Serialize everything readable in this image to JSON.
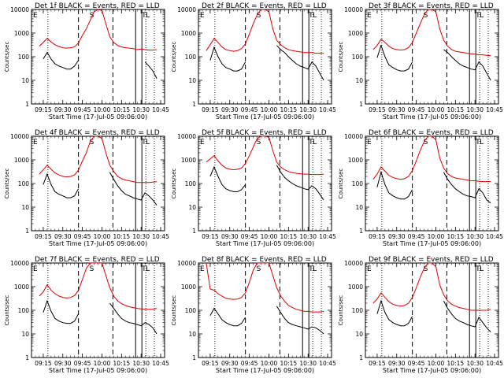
{
  "chart_data": {
    "type": "line",
    "layout": "3x3 grid",
    "xlabel": "Start Time (17-Jul-05 09:06:00)",
    "ylabel": "Counts/sec",
    "xlim": [
      9.1,
      10.8
    ],
    "ylim": [
      1,
      10000
    ],
    "yscale": "log",
    "x_ticks": [
      9.25,
      9.5,
      9.75,
      10.0,
      10.25,
      10.5,
      10.75
    ],
    "x_tick_labels": [
      "09:15",
      "09:30",
      "09:45",
      "10:00",
      "10:15",
      "10:30",
      "10:45"
    ],
    "y_ticks": [
      1,
      10,
      100,
      1000,
      10000
    ],
    "y_tick_labels": [
      "1",
      "10",
      "100",
      "1000",
      "10000"
    ],
    "legend": "BLACK = Events, RED = LLD",
    "series_colors": {
      "events": "#000000",
      "lld": "#e00000"
    },
    "attenuator_marks": [
      {
        "label": "E",
        "x": 9.12
      },
      {
        "label": "S",
        "x": 9.84
      },
      {
        "label": "T",
        "x": 10.51
      },
      {
        "label": "L",
        "x": 10.56
      }
    ],
    "dotted_lines_x": [
      9.31,
      10.56,
      10.67
    ],
    "dashed_lines_x": [
      9.7,
      10.14
    ],
    "solid_lines_x": [
      10.43,
      10.51
    ],
    "x": [
      9.2,
      9.25,
      9.3,
      9.35,
      9.4,
      9.45,
      9.5,
      9.55,
      9.6,
      9.65,
      9.7,
      9.75,
      9.8,
      9.85,
      9.9,
      9.95,
      10.0,
      10.05,
      10.1,
      10.15,
      10.2,
      10.25,
      10.3,
      10.35,
      10.4,
      10.45,
      10.5,
      10.55,
      10.6,
      10.65,
      10.7
    ],
    "panels": [
      {
        "title": "Det 1f BLACK = Events, RED = LLD",
        "lld": [
          280,
          400,
          600,
          420,
          320,
          270,
          240,
          230,
          240,
          260,
          380,
          800,
          1500,
          3500,
          8000,
          10000,
          9000,
          2500,
          700,
          400,
          300,
          260,
          240,
          230,
          220,
          200,
          210,
          200,
          190,
          190,
          200
        ],
        "events": [
          null,
          80,
          150,
          80,
          50,
          40,
          35,
          30,
          30,
          40,
          70,
          null,
          null,
          null,
          null,
          null,
          null,
          null,
          null,
          null,
          null,
          null,
          null,
          null,
          null,
          null,
          null,
          60,
          40,
          25,
          12
        ]
      },
      {
        "title": "Det 2f BLACK = Events, RED = LLD",
        "lld": [
          180,
          320,
          600,
          400,
          260,
          200,
          180,
          170,
          180,
          220,
          350,
          900,
          2500,
          6000,
          10000,
          10000,
          8000,
          1500,
          500,
          320,
          240,
          200,
          180,
          170,
          160,
          150,
          150,
          150,
          140,
          140,
          140
        ],
        "events": [
          null,
          70,
          250,
          100,
          50,
          35,
          30,
          25,
          25,
          30,
          60,
          null,
          null,
          null,
          null,
          null,
          null,
          null,
          300,
          200,
          150,
          100,
          70,
          50,
          40,
          35,
          30,
          60,
          40,
          20,
          10
        ]
      },
      {
        "title": "Det 3f BLACK = Events, RED = LLD",
        "lld": [
          200,
          300,
          550,
          400,
          280,
          220,
          200,
          190,
          200,
          240,
          400,
          1000,
          2500,
          6000,
          10000,
          10000,
          8000,
          1500,
          500,
          280,
          200,
          170,
          160,
          150,
          140,
          130,
          130,
          120,
          120,
          115,
          110
        ],
        "events": [
          null,
          90,
          300,
          100,
          45,
          35,
          28,
          25,
          25,
          30,
          60,
          null,
          null,
          null,
          null,
          null,
          null,
          null,
          200,
          150,
          100,
          70,
          50,
          40,
          35,
          30,
          28,
          60,
          40,
          20,
          10
        ]
      },
      {
        "title": "Det 4f BLACK = Events, RED = LLD",
        "lld": [
          250,
          380,
          600,
          400,
          280,
          230,
          200,
          190,
          200,
          230,
          370,
          900,
          2000,
          6000,
          10000,
          10000,
          8000,
          2000,
          600,
          320,
          200,
          160,
          140,
          130,
          120,
          110,
          110,
          110,
          110,
          115,
          120
        ],
        "events": [
          null,
          90,
          250,
          90,
          45,
          35,
          30,
          25,
          25,
          30,
          60,
          null,
          null,
          null,
          null,
          null,
          null,
          null,
          300,
          150,
          80,
          50,
          35,
          30,
          25,
          22,
          20,
          40,
          30,
          20,
          12
        ]
      },
      {
        "title": "Det 5f BLACK = Events, RED = LLD",
        "lld": [
          800,
          1100,
          1500,
          900,
          600,
          450,
          400,
          380,
          400,
          450,
          700,
          1500,
          3500,
          8000,
          10000,
          10000,
          9000,
          2500,
          800,
          500,
          380,
          320,
          290,
          270,
          260,
          250,
          250,
          240,
          240,
          240,
          250
        ],
        "events": [
          null,
          200,
          500,
          200,
          90,
          60,
          50,
          45,
          45,
          55,
          90,
          null,
          null,
          null,
          null,
          null,
          null,
          null,
          600,
          300,
          180,
          130,
          100,
          80,
          70,
          60,
          55,
          80,
          60,
          35,
          20
        ]
      },
      {
        "title": "Det 6f BLACK = Events, RED = LLD",
        "lld": [
          150,
          250,
          500,
          330,
          220,
          180,
          160,
          150,
          160,
          200,
          350,
          900,
          2500,
          6000,
          10000,
          10000,
          7000,
          1200,
          450,
          260,
          200,
          170,
          160,
          150,
          140,
          130,
          130,
          125,
          120,
          120,
          120
        ],
        "events": [
          null,
          70,
          300,
          90,
          40,
          30,
          25,
          22,
          22,
          28,
          55,
          null,
          null,
          null,
          null,
          null,
          null,
          null,
          300,
          150,
          90,
          60,
          45,
          35,
          30,
          28,
          25,
          60,
          40,
          20,
          15
        ]
      },
      {
        "title": "Det 7f BLACK = Events, RED = LLD",
        "lld": [
          400,
          600,
          1200,
          700,
          500,
          400,
          350,
          330,
          350,
          420,
          700,
          2000,
          6000,
          10000,
          10000,
          10000,
          10000,
          3000,
          900,
          400,
          250,
          190,
          160,
          140,
          130,
          120,
          115,
          110,
          110,
          110,
          120
        ],
        "events": [
          null,
          80,
          250,
          90,
          45,
          35,
          30,
          28,
          28,
          35,
          70,
          null,
          null,
          null,
          null,
          null,
          null,
          null,
          200,
          120,
          70,
          45,
          35,
          30,
          28,
          25,
          22,
          30,
          25,
          18,
          10
        ]
      },
      {
        "title": "Det 8f BLACK = Events, RED = LLD",
        "lld": [
          10000,
          800,
          700,
          500,
          400,
          320,
          300,
          290,
          300,
          350,
          550,
          1500,
          5000,
          10000,
          10000,
          10000,
          10000,
          3000,
          900,
          400,
          240,
          160,
          130,
          110,
          100,
          90,
          90,
          85,
          85,
          85,
          90
        ],
        "events": [
          null,
          60,
          120,
          70,
          40,
          30,
          25,
          22,
          22,
          28,
          50,
          null,
          null,
          null,
          null,
          null,
          null,
          null,
          150,
          80,
          45,
          30,
          25,
          22,
          20,
          18,
          16,
          20,
          18,
          14,
          10
        ]
      },
      {
        "title": "Det 9f BLACK = Events, RED = LLD",
        "lld": [
          200,
          300,
          550,
          350,
          230,
          180,
          160,
          150,
          160,
          200,
          350,
          900,
          2500,
          6000,
          10000,
          10000,
          7000,
          1200,
          450,
          250,
          180,
          150,
          130,
          120,
          110,
          100,
          100,
          100,
          100,
          100,
          110
        ],
        "events": [
          null,
          70,
          250,
          80,
          40,
          30,
          25,
          22,
          22,
          28,
          55,
          null,
          null,
          null,
          null,
          null,
          null,
          null,
          250,
          120,
          70,
          45,
          35,
          30,
          25,
          22,
          20,
          50,
          30,
          18,
          12
        ]
      }
    ]
  }
}
